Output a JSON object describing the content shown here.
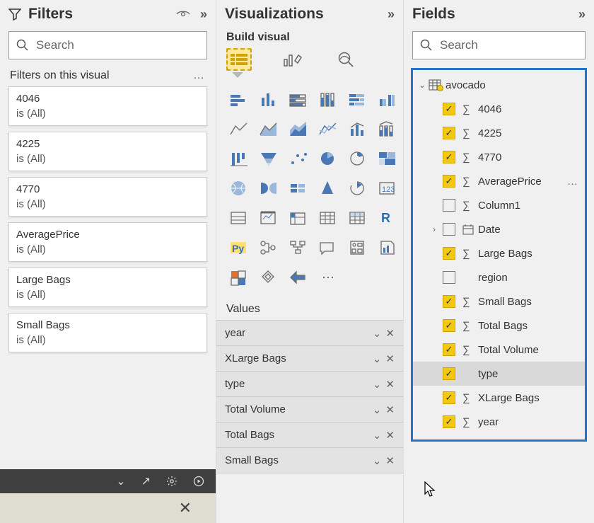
{
  "filters": {
    "title": "Filters",
    "search_placeholder": "Search",
    "section_title": "Filters on this visual",
    "cards": [
      {
        "name": "4046",
        "scope": "is (All)"
      },
      {
        "name": "4225",
        "scope": "is (All)"
      },
      {
        "name": "4770",
        "scope": "is (All)"
      },
      {
        "name": "AveragePrice",
        "scope": "is (All)"
      },
      {
        "name": "Large Bags",
        "scope": "is (All)"
      },
      {
        "name": "Small Bags",
        "scope": "is (All)"
      }
    ]
  },
  "viz": {
    "title": "Visualizations",
    "build_label": "Build visual",
    "values_label": "Values",
    "tabs": [
      {
        "name": "build",
        "active": true
      },
      {
        "name": "format",
        "active": false
      },
      {
        "name": "analytics",
        "active": false
      }
    ],
    "wells": [
      {
        "label": "year"
      },
      {
        "label": "XLarge Bags"
      },
      {
        "label": "type"
      },
      {
        "label": "Total Volume"
      },
      {
        "label": "Total Bags"
      },
      {
        "label": "Small Bags"
      }
    ],
    "grid_count": 38,
    "colors": {
      "icon": "#4a78b5",
      "outline": "#6a6a6a",
      "r": "#2f6fb3",
      "py": "#2f6fb3",
      "py_bg": "#ffe173"
    }
  },
  "fields": {
    "title": "Fields",
    "search_placeholder": "Search",
    "highlight_color": "#2673c9",
    "checkbox_color": "#f2c811",
    "table": {
      "name": "avocado",
      "fields": [
        {
          "label": "4046",
          "checked": true,
          "sigma": true
        },
        {
          "label": "4225",
          "checked": true,
          "sigma": true
        },
        {
          "label": "4770",
          "checked": true,
          "sigma": true
        },
        {
          "label": "AveragePrice",
          "checked": true,
          "sigma": true,
          "more": true
        },
        {
          "label": "Column1",
          "checked": false,
          "sigma": true
        },
        {
          "label": "Date",
          "checked": false,
          "sigma": false,
          "hierarchy": true,
          "date": true
        },
        {
          "label": "Large Bags",
          "checked": true,
          "sigma": true
        },
        {
          "label": "region",
          "checked": false,
          "sigma": false
        },
        {
          "label": "Small Bags",
          "checked": true,
          "sigma": true
        },
        {
          "label": "Total Bags",
          "checked": true,
          "sigma": true
        },
        {
          "label": "Total Volume",
          "checked": true,
          "sigma": true
        },
        {
          "label": "type",
          "checked": true,
          "sigma": false,
          "selected": true
        },
        {
          "label": "XLarge Bags",
          "checked": true,
          "sigma": true
        },
        {
          "label": "year",
          "checked": true,
          "sigma": true
        }
      ]
    }
  }
}
